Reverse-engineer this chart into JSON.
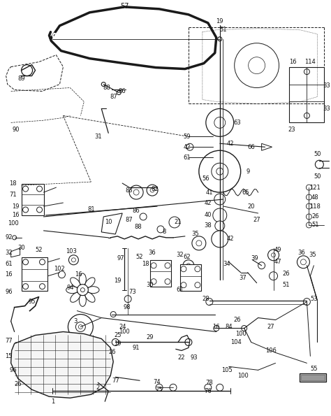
{
  "bg_color": "#ffffff",
  "line_color": "#1a1a1a",
  "text_color": "#111111",
  "fig_width": 4.74,
  "fig_height": 5.95,
  "dpi": 100
}
